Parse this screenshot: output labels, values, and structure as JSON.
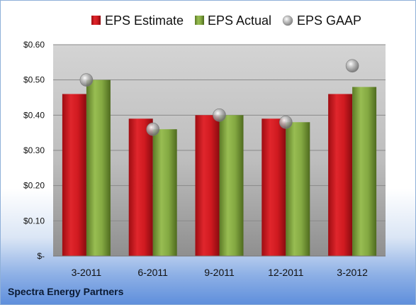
{
  "company": "Spectra Energy Partners",
  "colors": {
    "estimate": "#c8141c",
    "actual": "#7da03c",
    "gaap": "#a8a8a8"
  },
  "chart_data": {
    "type": "bar",
    "categories": [
      "3-2011",
      "6-2011",
      "9-2011",
      "12-2011",
      "3-2012"
    ],
    "series": [
      {
        "name": "EPS Estimate",
        "values": [
          0.46,
          0.39,
          0.4,
          0.39,
          0.46
        ]
      },
      {
        "name": "EPS Actual",
        "values": [
          0.5,
          0.36,
          0.4,
          0.38,
          0.48
        ]
      },
      {
        "name": "EPS GAAP",
        "type": "scatter",
        "values": [
          0.5,
          0.36,
          0.4,
          0.38,
          0.54
        ]
      }
    ],
    "yticks": [
      "$-",
      "$0.10",
      "$0.20",
      "$0.30",
      "$0.40",
      "$0.50",
      "$0.60"
    ],
    "ylim": [
      0,
      0.6
    ],
    "grid": true,
    "legend": "top"
  }
}
